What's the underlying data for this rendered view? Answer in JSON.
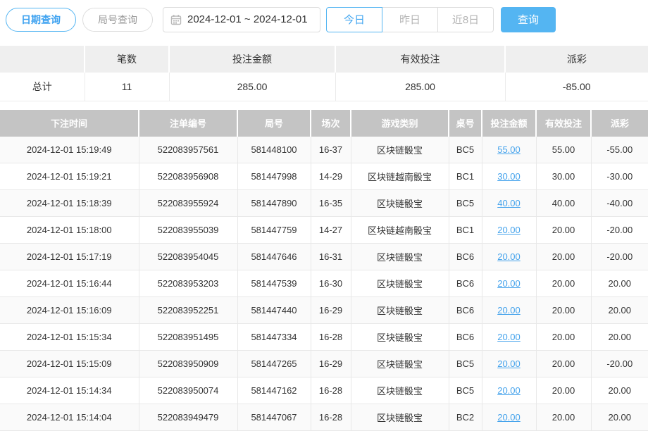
{
  "colors": {
    "primary_blue": "#54b5f2",
    "active_text_blue": "#3ea2f0",
    "link_blue": "#45a3ec",
    "negative_red": "#f0485c",
    "grid_header_gray": "#c4c4c4",
    "summary_header_gray": "#efefef"
  },
  "toolbar": {
    "date_query_label": "日期查询",
    "round_query_label": "局号查询",
    "calendar_icon": "calendar-icon",
    "date_range_value": "2024-12-01 ~ 2024-12-01",
    "quick_filters": [
      {
        "label": "今日",
        "active": true
      },
      {
        "label": "昨日",
        "active": false
      },
      {
        "label": "近8日",
        "active": false
      }
    ],
    "search_label": "查询"
  },
  "summary": {
    "headers": [
      "",
      "笔数",
      "投注金额",
      "有效投注",
      "派彩"
    ],
    "cells": [
      "总计",
      "11",
      "285.00",
      "285.00",
      "-85.00"
    ]
  },
  "table": {
    "headers": [
      "下注时间",
      "注单编号",
      "局号",
      "场次",
      "游戏类别",
      "桌号",
      "投注金额",
      "有效投注",
      "派彩"
    ],
    "column_names": [
      "bet-time",
      "order-id",
      "round-id",
      "session",
      "game-type",
      "table-id",
      "bet-amount",
      "valid-bet",
      "payout"
    ],
    "rows": [
      [
        "2024-12-01 15:19:49",
        "522083957561",
        "581448100",
        "16-37",
        "区块链骰宝",
        "BC5",
        "55.00",
        "55.00",
        "-55.00"
      ],
      [
        "2024-12-01 15:19:21",
        "522083956908",
        "581447998",
        "14-29",
        "区块链越南骰宝",
        "BC1",
        "30.00",
        "30.00",
        "-30.00"
      ],
      [
        "2024-12-01 15:18:39",
        "522083955924",
        "581447890",
        "16-35",
        "区块链骰宝",
        "BC5",
        "40.00",
        "40.00",
        "-40.00"
      ],
      [
        "2024-12-01 15:18:00",
        "522083955039",
        "581447759",
        "14-27",
        "区块链越南骰宝",
        "BC1",
        "20.00",
        "20.00",
        "-20.00"
      ],
      [
        "2024-12-01 15:17:19",
        "522083954045",
        "581447646",
        "16-31",
        "区块链骰宝",
        "BC6",
        "20.00",
        "20.00",
        "-20.00"
      ],
      [
        "2024-12-01 15:16:44",
        "522083953203",
        "581447539",
        "16-30",
        "区块链骰宝",
        "BC6",
        "20.00",
        "20.00",
        "20.00"
      ],
      [
        "2024-12-01 15:16:09",
        "522083952251",
        "581447440",
        "16-29",
        "区块链骰宝",
        "BC6",
        "20.00",
        "20.00",
        "20.00"
      ],
      [
        "2024-12-01 15:15:34",
        "522083951495",
        "581447334",
        "16-28",
        "区块链骰宝",
        "BC6",
        "20.00",
        "20.00",
        "20.00"
      ],
      [
        "2024-12-01 15:15:09",
        "522083950909",
        "581447265",
        "16-29",
        "区块链骰宝",
        "BC5",
        "20.00",
        "20.00",
        "-20.00"
      ],
      [
        "2024-12-01 15:14:34",
        "522083950074",
        "581447162",
        "16-28",
        "区块链骰宝",
        "BC5",
        "20.00",
        "20.00",
        "20.00"
      ],
      [
        "2024-12-01 15:14:04",
        "522083949479",
        "581447067",
        "16-28",
        "区块链骰宝",
        "BC2",
        "20.00",
        "20.00",
        "20.00"
      ]
    ]
  }
}
